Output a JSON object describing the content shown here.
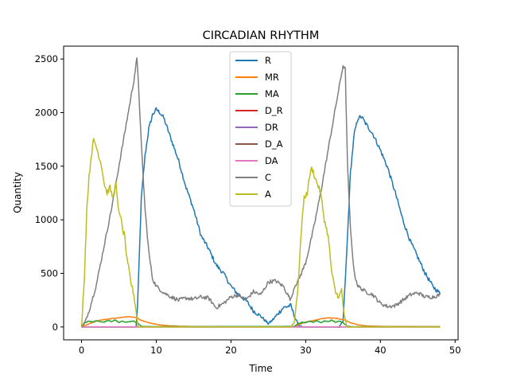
{
  "chart_data": {
    "type": "line",
    "title": "CIRCADIAN RHYTHM",
    "xlabel": "Time",
    "ylabel": "Quantity",
    "xlim": [
      -2.4,
      50.4
    ],
    "ylim": [
      -120,
      2620
    ],
    "xticks": [
      0,
      10,
      20,
      30,
      40,
      50
    ],
    "yticks": [
      0,
      500,
      1000,
      1500,
      2000,
      2500
    ],
    "xtick_labels": [
      "0",
      "10",
      "20",
      "30",
      "40",
      "50"
    ],
    "ytick_labels": [
      "0",
      "500",
      "1000",
      "1500",
      "2000",
      "2500"
    ],
    "grid": false,
    "legend_position": "top-center",
    "series": [
      {
        "name": "R",
        "color": "#1f77b4",
        "x": [
          0,
          7.3,
          7.5,
          8,
          8.5,
          9,
          9.5,
          10,
          10.5,
          11,
          11.5,
          12,
          12.5,
          13,
          14,
          15,
          16,
          17,
          18,
          19,
          20,
          21,
          22,
          23,
          24,
          25,
          25.5,
          26,
          27,
          28,
          28.5,
          29,
          29.5,
          34.5,
          35,
          35.5,
          36,
          36.5,
          37,
          37.5,
          38,
          38.5,
          39,
          40,
          41,
          42,
          43,
          44,
          45,
          46,
          47,
          48
        ],
        "y": [
          0,
          0,
          200,
          1200,
          1600,
          1850,
          1980,
          2030,
          2000,
          1950,
          1850,
          1750,
          1650,
          1550,
          1300,
          1100,
          850,
          730,
          580,
          500,
          380,
          300,
          250,
          150,
          100,
          30,
          60,
          100,
          180,
          200,
          100,
          20,
          0,
          0,
          50,
          700,
          1450,
          1800,
          1950,
          1960,
          1900,
          1850,
          1800,
          1650,
          1480,
          1250,
          1000,
          800,
          650,
          500,
          380,
          310
        ]
      },
      {
        "name": "MR",
        "color": "#ff7f0e",
        "x": [
          0,
          1,
          2,
          3,
          4,
          5,
          6,
          7,
          7.5,
          8,
          9,
          10,
          11,
          12,
          14,
          20,
          25,
          28.5,
          29,
          30,
          31,
          32,
          33,
          34,
          35,
          35.5,
          36,
          37,
          38,
          40,
          48
        ],
        "y": [
          0,
          30,
          55,
          70,
          78,
          85,
          95,
          92,
          80,
          60,
          40,
          25,
          15,
          10,
          5,
          3,
          2,
          3,
          20,
          45,
          60,
          75,
          85,
          80,
          70,
          55,
          40,
          20,
          10,
          5,
          3
        ]
      },
      {
        "name": "MA",
        "color": "#2ca02c",
        "x": [
          0,
          0.5,
          1,
          1.5,
          2,
          2.5,
          3,
          3.5,
          4,
          4.5,
          5,
          5.5,
          6,
          6.5,
          7,
          7.5,
          8,
          10,
          28.5,
          29,
          29.5,
          30,
          30.5,
          31,
          31.5,
          32,
          32.5,
          33,
          33.5,
          34,
          34.5,
          35,
          35.5,
          36,
          48
        ],
        "y": [
          0,
          40,
          55,
          45,
          60,
          50,
          45,
          60,
          50,
          65,
          40,
          55,
          45,
          50,
          55,
          35,
          5,
          3,
          5,
          30,
          45,
          40,
          55,
          45,
          60,
          40,
          55,
          50,
          65,
          45,
          55,
          40,
          10,
          3,
          3
        ]
      },
      {
        "name": "D_R",
        "color": "#d62728",
        "x": [
          0,
          48
        ],
        "y": [
          1,
          1
        ]
      },
      {
        "name": "DR",
        "color": "#9467bd",
        "x": [
          0,
          48
        ],
        "y": [
          1,
          1
        ]
      },
      {
        "name": "D_A",
        "color": "#8c564b",
        "x": [
          0,
          48
        ],
        "y": [
          0,
          0
        ]
      },
      {
        "name": "DA",
        "color": "#e377c2",
        "x": [
          0,
          7.5,
          8,
          28,
          28.5,
          35,
          35.5,
          48
        ],
        "y": [
          2,
          2,
          0,
          0,
          2,
          2,
          0,
          0
        ]
      },
      {
        "name": "C",
        "color": "#7f7f7f",
        "x": [
          0,
          0.5,
          1,
          2,
          3,
          4,
          5,
          6,
          7,
          7.4,
          7.6,
          8,
          8.5,
          9,
          9.5,
          10,
          10.5,
          11,
          12,
          13,
          14,
          15,
          16,
          17,
          18,
          19,
          20,
          21,
          22,
          23,
          24,
          25,
          26,
          27,
          28,
          28.5,
          29,
          30,
          31,
          32,
          33,
          34,
          35,
          35.3,
          35.6,
          36,
          36.5,
          37,
          38,
          39,
          40,
          41,
          42,
          43,
          44,
          45,
          46,
          47,
          48
        ],
        "y": [
          0,
          50,
          150,
          400,
          750,
          1100,
          1500,
          1900,
          2300,
          2500,
          2300,
          1700,
          1100,
          700,
          450,
          380,
          350,
          320,
          280,
          250,
          270,
          260,
          280,
          270,
          180,
          220,
          280,
          300,
          250,
          330,
          300,
          420,
          430,
          380,
          250,
          380,
          430,
          600,
          900,
          1250,
          1650,
          2050,
          2440,
          2400,
          1500,
          900,
          500,
          380,
          330,
          300,
          220,
          190,
          200,
          250,
          300,
          320,
          280,
          280,
          300
        ]
      },
      {
        "name": "A",
        "color": "#bcbd22",
        "x": [
          0,
          0.4,
          0.7,
          1,
          1.3,
          1.6,
          1.9,
          2.3,
          2.7,
          3,
          3.4,
          3.8,
          4.2,
          4.6,
          4.9,
          5.2,
          5.5,
          5.8,
          6,
          6.3,
          6.6,
          7,
          7.3,
          7.5,
          7.6,
          8,
          28,
          28.5,
          29,
          29.5,
          29.8,
          30.2,
          30.5,
          30.8,
          31,
          31.3,
          31.6,
          32,
          32.5,
          33,
          33.5,
          34,
          34.5,
          34.8,
          35,
          35.2,
          35.5,
          36,
          48
        ],
        "y": [
          0,
          500,
          1100,
          1400,
          1600,
          1740,
          1700,
          1600,
          1500,
          1350,
          1250,
          1300,
          1200,
          1340,
          1100,
          1050,
          900,
          850,
          650,
          550,
          420,
          300,
          150,
          30,
          0,
          0,
          0,
          50,
          400,
          1000,
          1200,
          1250,
          1400,
          1480,
          1450,
          1380,
          1330,
          1250,
          1000,
          850,
          500,
          320,
          280,
          350,
          200,
          100,
          0,
          0,
          0
        ]
      }
    ]
  }
}
